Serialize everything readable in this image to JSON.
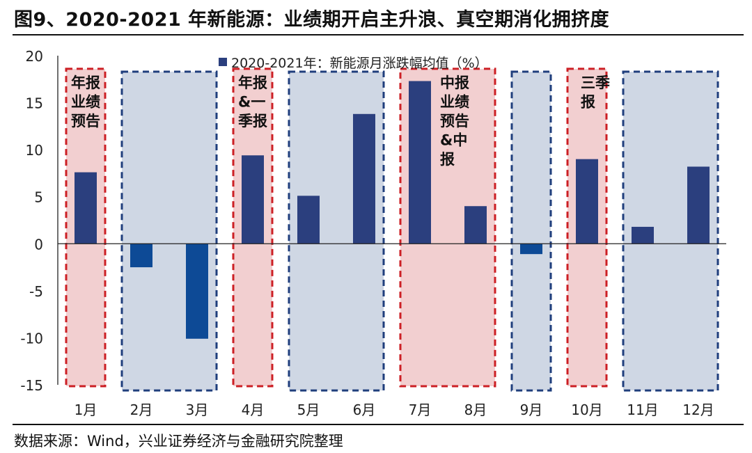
{
  "title": "图9、2020-2021 年新能源：业绩期开启主升浪、真空期消化拥挤度",
  "source": "数据来源：Wind，兴业证券经济与金融研究院整理",
  "colors": {
    "bar_positive": "#2b3f7e",
    "bar_negative": "#0d4a96",
    "earnings_fill": "#f2cfd0",
    "earnings_border": "#cc1f24",
    "vacuum_fill": "#cfd7e4",
    "vacuum_border": "#1f3e7c"
  },
  "chart_data": {
    "type": "bar",
    "categories": [
      "1月",
      "2月",
      "3月",
      "4月",
      "5月",
      "6月",
      "7月",
      "8月",
      "9月",
      "10月",
      "11月",
      "12月"
    ],
    "series": [
      {
        "name": "2020-2021年：新能源月涨跌幅均值（%）",
        "values": [
          7.6,
          -2.5,
          -10.1,
          9.4,
          5.1,
          13.8,
          17.3,
          4.0,
          -1.1,
          9.0,
          1.8,
          8.2
        ]
      }
    ],
    "ylim": [
      -15,
      20
    ],
    "yticks": [
      20,
      15,
      10,
      5,
      0,
      -5,
      -10,
      -15
    ],
    "legend_position": "top-center",
    "periods": [
      {
        "kind": "earnings",
        "months": [
          1,
          1
        ],
        "label_lines": [
          "年报",
          "业绩",
          "预告"
        ]
      },
      {
        "kind": "vacuum",
        "months": [
          2,
          3
        ],
        "label_lines": []
      },
      {
        "kind": "earnings",
        "months": [
          4,
          4
        ],
        "label_lines": [
          "年报",
          "&一",
          "季报"
        ]
      },
      {
        "kind": "vacuum",
        "months": [
          5,
          6
        ],
        "label_lines": []
      },
      {
        "kind": "earnings",
        "months": [
          7,
          8
        ],
        "label_lines": [
          "中报",
          "业绩",
          "预告",
          "&中",
          "报"
        ]
      },
      {
        "kind": "vacuum",
        "months": [
          9,
          9
        ],
        "label_lines": []
      },
      {
        "kind": "earnings",
        "months": [
          10,
          10
        ],
        "label_lines": [
          "三季",
          "报"
        ]
      },
      {
        "kind": "vacuum",
        "months": [
          11,
          12
        ],
        "label_lines": []
      }
    ]
  }
}
